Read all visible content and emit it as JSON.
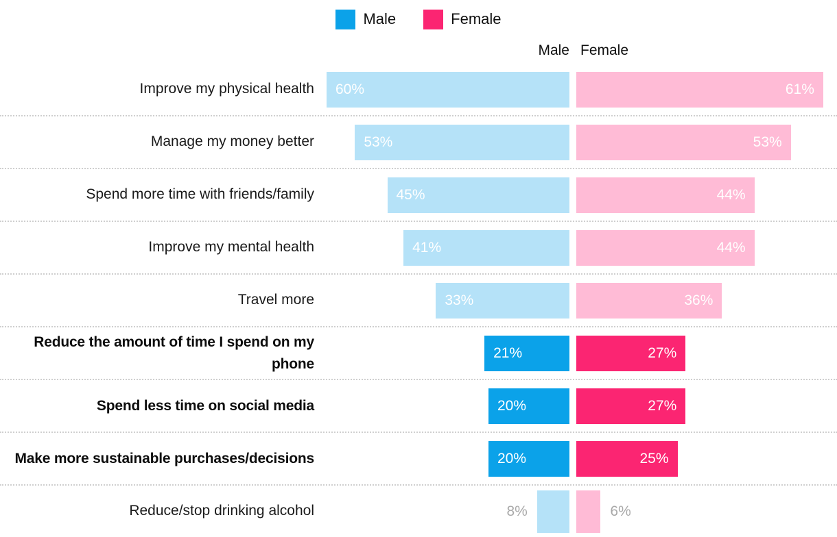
{
  "legend": {
    "male": "Male",
    "female": "Female"
  },
  "columns": {
    "male": "Male",
    "female": "Female"
  },
  "colors": {
    "male_bright": "#0BA2E9",
    "female_bright": "#FB2572",
    "male_light": "#B5E2F8",
    "female_light": "#FFBBD6",
    "outside_label": "#A9A9A9",
    "separator": "#CFCFCF",
    "text": "#1A1A1A"
  },
  "rows": [
    {
      "label": "Improve my physical health",
      "male": 60,
      "male_text": "60%",
      "female": 61,
      "female_text": "61%",
      "emphasis": false,
      "labels_outside": false
    },
    {
      "label": "Manage my money better",
      "male": 53,
      "male_text": "53%",
      "female": 53,
      "female_text": "53%",
      "emphasis": false,
      "labels_outside": false
    },
    {
      "label": "Spend more time with friends/family",
      "male": 45,
      "male_text": "45%",
      "female": 44,
      "female_text": "44%",
      "emphasis": false,
      "labels_outside": false
    },
    {
      "label": "Improve my mental health",
      "male": 41,
      "male_text": "41%",
      "female": 44,
      "female_text": "44%",
      "emphasis": false,
      "labels_outside": false
    },
    {
      "label": "Travel more",
      "male": 33,
      "male_text": "33%",
      "female": 36,
      "female_text": "36%",
      "emphasis": false,
      "labels_outside": false
    },
    {
      "label": "Reduce the amount of time I spend on my phone",
      "male": 21,
      "male_text": "21%",
      "female": 27,
      "female_text": "27%",
      "emphasis": true,
      "labels_outside": false
    },
    {
      "label": "Spend less time on social media",
      "male": 20,
      "male_text": "20%",
      "female": 27,
      "female_text": "27%",
      "emphasis": true,
      "labels_outside": false
    },
    {
      "label": "Make more sustainable purchases/decisions",
      "male": 20,
      "male_text": "20%",
      "female": 25,
      "female_text": "25%",
      "emphasis": true,
      "labels_outside": false
    },
    {
      "label": "Reduce/stop drinking alcohol",
      "male": 8,
      "male_text": "8%",
      "female": 6,
      "female_text": "6%",
      "emphasis": false,
      "labels_outside": true
    }
  ],
  "chart_data": {
    "type": "bar",
    "orientation": "horizontal-diverging",
    "title": "",
    "categories": [
      "Improve my physical health",
      "Manage my money better",
      "Spend more time with friends/family",
      "Improve my mental health",
      "Travel more",
      "Reduce the amount of time I spend on my phone",
      "Spend less time on social media",
      "Make more sustainable purchases/decisions",
      "Reduce/stop drinking alcohol"
    ],
    "series": [
      {
        "name": "Male",
        "values": [
          60,
          53,
          45,
          41,
          33,
          21,
          20,
          20,
          8
        ]
      },
      {
        "name": "Female",
        "values": [
          61,
          53,
          44,
          44,
          36,
          27,
          27,
          25,
          6
        ]
      }
    ],
    "value_format": "percent",
    "axis_range": [
      0,
      62
    ],
    "grid": "dotted-row-separators",
    "legend_position": "top-center",
    "emphasized_categories": [
      "Reduce the amount of time I spend on my phone",
      "Spend less time on social media",
      "Make more sustainable purchases/decisions"
    ]
  }
}
